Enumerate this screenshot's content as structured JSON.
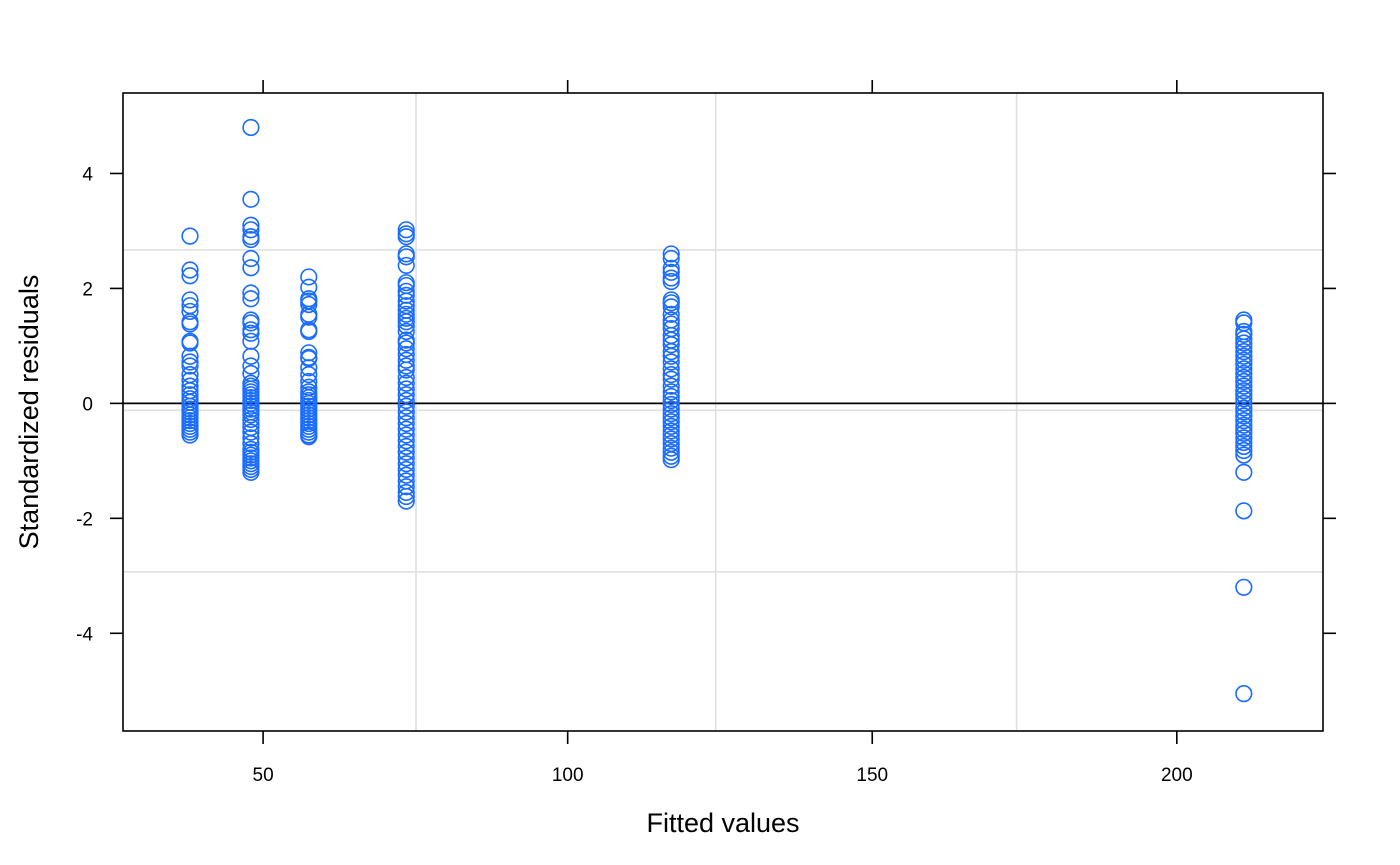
{
  "chart_data": {
    "type": "scatter",
    "title": "",
    "xlabel": "Fitted values",
    "ylabel": "Standardized residuals",
    "xlim": [
      27,
      224
    ],
    "ylim": [
      -5.7,
      5.4
    ],
    "xticks": [
      50,
      100,
      150,
      200
    ],
    "xtick_labels": [
      "50",
      "100",
      "150",
      "200"
    ],
    "yticks": [
      -4,
      -2,
      0,
      2,
      4
    ],
    "ytick_labels": [
      "-4",
      "-2",
      "0",
      "2",
      "4"
    ],
    "reference_line_y": 0,
    "grid_x": [
      75.1,
      124.3,
      173.7
    ],
    "grid_y": [
      -2.93,
      -0.12,
      2.67
    ],
    "grid": true,
    "marker": "open-circle",
    "colors": {
      "points": "#1a6cff",
      "grid": "#e0e0e0",
      "axis": "#000000",
      "zero_line": "#000000"
    },
    "series": [
      {
        "points": [
          [
            38,
            2.91
          ],
          [
            38,
            2.32
          ],
          [
            38,
            2.22
          ],
          [
            38,
            1.8
          ],
          [
            38,
            1.7
          ],
          [
            38,
            1.6
          ],
          [
            38,
            1.42
          ],
          [
            38,
            1.38
          ],
          [
            38,
            1.08
          ],
          [
            38,
            1.05
          ],
          [
            38,
            0.82
          ],
          [
            38,
            0.72
          ],
          [
            38,
            0.65
          ],
          [
            38,
            0.5
          ],
          [
            38,
            0.4
          ],
          [
            38,
            0.3
          ],
          [
            38,
            0.22
          ],
          [
            38,
            0.15
          ],
          [
            38,
            0.08
          ],
          [
            38,
            0.02
          ],
          [
            38,
            -0.05
          ],
          [
            38,
            -0.1
          ],
          [
            38,
            -0.15
          ],
          [
            38,
            -0.2
          ],
          [
            38,
            -0.25
          ],
          [
            38,
            -0.3
          ],
          [
            38,
            -0.35
          ],
          [
            38,
            -0.4
          ],
          [
            38,
            -0.45
          ],
          [
            38,
            -0.5
          ],
          [
            38,
            -0.55
          ],
          [
            48,
            4.8
          ],
          [
            48,
            3.55
          ],
          [
            48,
            3.1
          ],
          [
            48,
            3.02
          ],
          [
            48,
            2.9
          ],
          [
            48,
            2.85
          ],
          [
            48,
            2.52
          ],
          [
            48,
            2.36
          ],
          [
            48,
            1.92
          ],
          [
            48,
            1.82
          ],
          [
            48,
            1.45
          ],
          [
            48,
            1.4
          ],
          [
            48,
            1.28
          ],
          [
            48,
            1.22
          ],
          [
            48,
            1.08
          ],
          [
            48,
            0.82
          ],
          [
            48,
            0.65
          ],
          [
            48,
            0.52
          ],
          [
            48,
            0.35
          ],
          [
            48,
            0.3
          ],
          [
            48,
            0.25
          ],
          [
            48,
            0.2
          ],
          [
            48,
            0.15
          ],
          [
            48,
            0.1
          ],
          [
            48,
            0.05
          ],
          [
            48,
            0.0
          ],
          [
            48,
            -0.05
          ],
          [
            48,
            -0.1
          ],
          [
            48,
            -0.15
          ],
          [
            48,
            -0.2
          ],
          [
            48,
            -0.28
          ],
          [
            48,
            -0.35
          ],
          [
            48,
            -0.42
          ],
          [
            48,
            -0.5
          ],
          [
            48,
            -0.6
          ],
          [
            48,
            -0.7
          ],
          [
            48,
            -0.8
          ],
          [
            48,
            -0.85
          ],
          [
            48,
            -0.9
          ],
          [
            48,
            -0.95
          ],
          [
            48,
            -1.0
          ],
          [
            48,
            -1.05
          ],
          [
            48,
            -1.1
          ],
          [
            48,
            -1.15
          ],
          [
            48,
            -1.2
          ],
          [
            57.5,
            2.2
          ],
          [
            57.5,
            2.02
          ],
          [
            57.5,
            1.82
          ],
          [
            57.5,
            1.78
          ],
          [
            57.5,
            1.72
          ],
          [
            57.5,
            1.55
          ],
          [
            57.5,
            1.5
          ],
          [
            57.5,
            1.28
          ],
          [
            57.5,
            1.25
          ],
          [
            57.5,
            0.88
          ],
          [
            57.5,
            0.8
          ],
          [
            57.5,
            0.78
          ],
          [
            57.5,
            0.62
          ],
          [
            57.5,
            0.5
          ],
          [
            57.5,
            0.38
          ],
          [
            57.5,
            0.28
          ],
          [
            57.5,
            0.2
          ],
          [
            57.5,
            0.15
          ],
          [
            57.5,
            0.1
          ],
          [
            57.5,
            0.05
          ],
          [
            57.5,
            0.0
          ],
          [
            57.5,
            -0.05
          ],
          [
            57.5,
            -0.1
          ],
          [
            57.5,
            -0.15
          ],
          [
            57.5,
            -0.2
          ],
          [
            57.5,
            -0.25
          ],
          [
            57.5,
            -0.3
          ],
          [
            57.5,
            -0.35
          ],
          [
            57.5,
            -0.4
          ],
          [
            57.5,
            -0.45
          ],
          [
            57.5,
            -0.5
          ],
          [
            57.5,
            -0.55
          ],
          [
            57.5,
            -0.58
          ],
          [
            73.5,
            3.02
          ],
          [
            73.5,
            2.95
          ],
          [
            73.5,
            2.9
          ],
          [
            73.5,
            2.6
          ],
          [
            73.5,
            2.55
          ],
          [
            73.5,
            2.4
          ],
          [
            73.5,
            2.1
          ],
          [
            73.5,
            2.05
          ],
          [
            73.5,
            1.95
          ],
          [
            73.5,
            1.88
          ],
          [
            73.5,
            1.78
          ],
          [
            73.5,
            1.7
          ],
          [
            73.5,
            1.62
          ],
          [
            73.5,
            1.55
          ],
          [
            73.5,
            1.48
          ],
          [
            73.5,
            1.42
          ],
          [
            73.5,
            1.35
          ],
          [
            73.5,
            1.25
          ],
          [
            73.5,
            1.1
          ],
          [
            73.5,
            1.05
          ],
          [
            73.5,
            0.95
          ],
          [
            73.5,
            0.85
          ],
          [
            73.5,
            0.75
          ],
          [
            73.5,
            0.65
          ],
          [
            73.5,
            0.58
          ],
          [
            73.5,
            0.45
          ],
          [
            73.5,
            0.35
          ],
          [
            73.5,
            0.25
          ],
          [
            73.5,
            0.15
          ],
          [
            73.5,
            0.05
          ],
          [
            73.5,
            -0.05
          ],
          [
            73.5,
            -0.15
          ],
          [
            73.5,
            -0.25
          ],
          [
            73.5,
            -0.35
          ],
          [
            73.5,
            -0.45
          ],
          [
            73.5,
            -0.55
          ],
          [
            73.5,
            -0.65
          ],
          [
            73.5,
            -0.75
          ],
          [
            73.5,
            -0.85
          ],
          [
            73.5,
            -0.95
          ],
          [
            73.5,
            -1.05
          ],
          [
            73.5,
            -1.15
          ],
          [
            73.5,
            -1.25
          ],
          [
            73.5,
            -1.35
          ],
          [
            73.5,
            -1.45
          ],
          [
            73.5,
            -1.55
          ],
          [
            73.5,
            -1.62
          ],
          [
            73.5,
            -1.7
          ],
          [
            117,
            2.6
          ],
          [
            117,
            2.52
          ],
          [
            117,
            2.35
          ],
          [
            117,
            2.28
          ],
          [
            117,
            2.18
          ],
          [
            117,
            2.12
          ],
          [
            117,
            1.8
          ],
          [
            117,
            1.75
          ],
          [
            117,
            1.68
          ],
          [
            117,
            1.55
          ],
          [
            117,
            1.45
          ],
          [
            117,
            1.38
          ],
          [
            117,
            1.3
          ],
          [
            117,
            1.18
          ],
          [
            117,
            1.1
          ],
          [
            117,
            1.02
          ],
          [
            117,
            0.9
          ],
          [
            117,
            0.82
          ],
          [
            117,
            0.72
          ],
          [
            117,
            0.6
          ],
          [
            117,
            0.5
          ],
          [
            117,
            0.42
          ],
          [
            117,
            0.3
          ],
          [
            117,
            0.2
          ],
          [
            117,
            0.12
          ],
          [
            117,
            0.05
          ],
          [
            117,
            -0.02
          ],
          [
            117,
            -0.1
          ],
          [
            117,
            -0.18
          ],
          [
            117,
            -0.25
          ],
          [
            117,
            -0.32
          ],
          [
            117,
            -0.4
          ],
          [
            117,
            -0.48
          ],
          [
            117,
            -0.55
          ],
          [
            117,
            -0.62
          ],
          [
            117,
            -0.7
          ],
          [
            117,
            -0.78
          ],
          [
            117,
            -0.85
          ],
          [
            117,
            -0.92
          ],
          [
            117,
            -0.98
          ],
          [
            211,
            1.45
          ],
          [
            211,
            1.4
          ],
          [
            211,
            1.25
          ],
          [
            211,
            1.2
          ],
          [
            211,
            1.12
          ],
          [
            211,
            1.05
          ],
          [
            211,
            0.98
          ],
          [
            211,
            0.9
          ],
          [
            211,
            0.82
          ],
          [
            211,
            0.75
          ],
          [
            211,
            0.68
          ],
          [
            211,
            0.6
          ],
          [
            211,
            0.52
          ],
          [
            211,
            0.45
          ],
          [
            211,
            0.38
          ],
          [
            211,
            0.3
          ],
          [
            211,
            0.22
          ],
          [
            211,
            0.15
          ],
          [
            211,
            0.08
          ],
          [
            211,
            0.0
          ],
          [
            211,
            -0.08
          ],
          [
            211,
            -0.15
          ],
          [
            211,
            -0.22
          ],
          [
            211,
            -0.3
          ],
          [
            211,
            -0.38
          ],
          [
            211,
            -0.45
          ],
          [
            211,
            -0.52
          ],
          [
            211,
            -0.6
          ],
          [
            211,
            -0.68
          ],
          [
            211,
            -0.75
          ],
          [
            211,
            -0.82
          ],
          [
            211,
            -0.9
          ],
          [
            211,
            -1.2
          ],
          [
            211,
            -1.87
          ],
          [
            211,
            -3.2
          ],
          [
            211,
            -5.05
          ]
        ]
      }
    ]
  }
}
